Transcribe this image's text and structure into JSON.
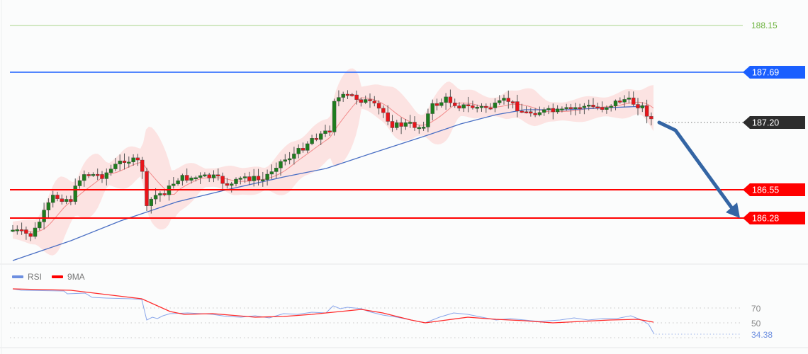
{
  "chart_data": {
    "type": "candlestick",
    "title": "",
    "price_panel": {
      "ylim": [
        186.0,
        188.25
      ],
      "levels": [
        {
          "name": "resistance-2",
          "value": 188.15,
          "label": "188.15",
          "color": "#7cbf4f",
          "style": "thin-line-text"
        },
        {
          "name": "resistance-1",
          "value": 187.69,
          "label": "187.69",
          "color": "#1a5fff",
          "style": "tag"
        },
        {
          "name": "last-price",
          "value": 187.2,
          "label": "187.20",
          "color": "#333333",
          "style": "tag-dotted"
        },
        {
          "name": "support-1",
          "value": 186.55,
          "label": "186.55",
          "color": "#ff0000",
          "style": "tag"
        },
        {
          "name": "support-2",
          "value": 186.28,
          "label": "186.28",
          "color": "#ff0000",
          "style": "tag"
        }
      ],
      "overlays": [
        "Bollinger Bands (shaded)",
        "Middle band MA (red)",
        "Long MA (blue)"
      ],
      "forecast_arrow": {
        "from": 187.2,
        "to": 186.28,
        "color": "#3465a4",
        "direction": "down"
      }
    },
    "rsi_panel": {
      "legend": [
        {
          "label": "RSI",
          "color": "#6d8fe0"
        },
        {
          "label": "9MA",
          "color": "#ff0000"
        }
      ],
      "levels": [
        70,
        50,
        30
      ],
      "level_labels": [
        "70",
        "50"
      ],
      "last_value": 34.38,
      "last_value_label": "34.38"
    }
  },
  "labels": {
    "r2": "188.15",
    "r1": "187.69",
    "last": "187.20",
    "s1": "186.55",
    "s2": "186.28",
    "rsi70": "70",
    "rsi50": "50",
    "rsi_last": "34.38",
    "legend_rsi": "RSI",
    "legend_ma": "9MA"
  },
  "colors": {
    "up": "#1e7d1e",
    "down": "#e8151b",
    "band": "#fcdedd",
    "mid": "#f28a8a",
    "longma": "#4a6fc4"
  }
}
